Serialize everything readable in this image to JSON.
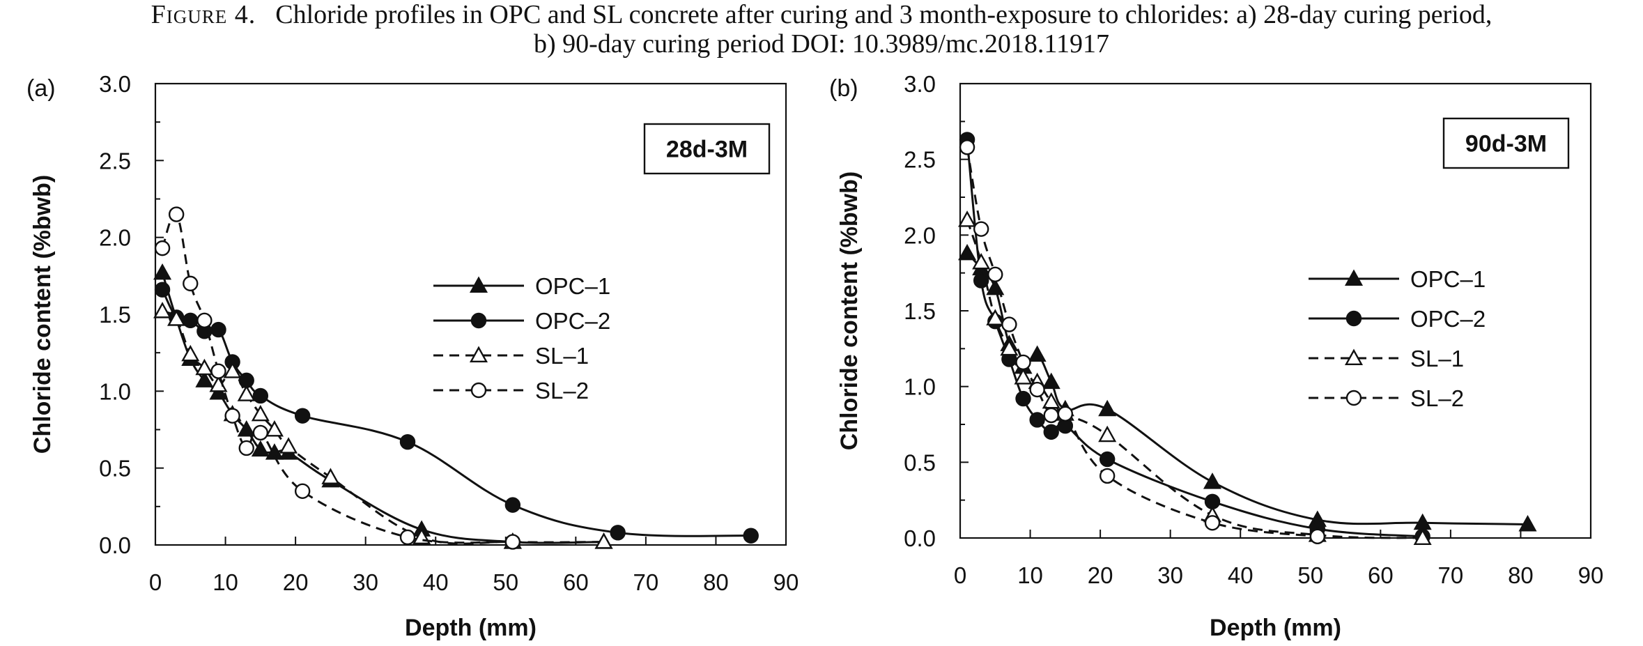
{
  "caption": {
    "figure_label": "Figure 4.",
    "line1": "Chloride profiles in OPC and SL concrete after curing and 3 month-exposure to chlorides: a) 28-day curing period,",
    "line2": "b) 90-day curing period DOI: 10.3989/mc.2018.11917"
  },
  "chart_data": [
    {
      "type": "line",
      "panel_label": "(a)",
      "inset_label": "28d-3M",
      "xlabel": "Depth (mm)",
      "ylabel": "Chloride content (%bwb)",
      "xlim": [
        0,
        90
      ],
      "ylim": [
        0,
        3.0
      ],
      "xticks": [
        "0",
        "10",
        "20",
        "30",
        "40",
        "50",
        "60",
        "70",
        "80",
        "90"
      ],
      "yticks": [
        "0.0",
        "0.5",
        "1.0",
        "1.5",
        "2.0",
        "2.5",
        "3.0"
      ],
      "grid": false,
      "legend_position": "center-right",
      "series": [
        {
          "name": "OPC–1",
          "marker": "triangle-filled",
          "line": "solid",
          "x": [
            1,
            3,
            5,
            7,
            9,
            11,
            13,
            15,
            17,
            19,
            25,
            38,
            51,
            64
          ],
          "y": [
            1.77,
            1.47,
            1.21,
            1.07,
            0.99,
            0.85,
            0.75,
            0.62,
            0.6,
            0.6,
            0.42,
            0.1,
            0.02,
            0.02
          ]
        },
        {
          "name": "OPC–2",
          "marker": "circle-filled",
          "line": "solid",
          "x": [
            1,
            3,
            5,
            7,
            9,
            11,
            13,
            15,
            21,
            36,
            51,
            66,
            85
          ],
          "y": [
            1.66,
            1.48,
            1.46,
            1.39,
            1.4,
            1.19,
            1.07,
            0.97,
            0.84,
            0.67,
            0.26,
            0.08,
            0.06
          ]
        },
        {
          "name": "SL–1",
          "marker": "triangle-open",
          "line": "dashed",
          "x": [
            1,
            3,
            5,
            7,
            9,
            11,
            13,
            15,
            17,
            19,
            25,
            38,
            51,
            64
          ],
          "y": [
            1.52,
            1.47,
            1.24,
            1.15,
            1.04,
            1.13,
            0.98,
            0.85,
            0.75,
            0.64,
            0.44,
            0.05,
            0.02,
            0.02
          ]
        },
        {
          "name": "SL–2",
          "marker": "circle-open",
          "line": "dashed",
          "x": [
            1,
            3,
            5,
            7,
            9,
            11,
            13,
            15,
            21,
            36,
            51
          ],
          "y": [
            1.93,
            2.15,
            1.7,
            1.46,
            1.13,
            0.84,
            0.63,
            0.73,
            0.35,
            0.05,
            0.02
          ]
        }
      ]
    },
    {
      "type": "line",
      "panel_label": "(b)",
      "inset_label": "90d-3M",
      "xlabel": "Depth (mm)",
      "ylabel": "Chloride content (%bwb)",
      "xlim": [
        0,
        90
      ],
      "ylim": [
        0,
        3.0
      ],
      "xticks": [
        "0",
        "10",
        "20",
        "30",
        "40",
        "50",
        "60",
        "70",
        "80",
        "90"
      ],
      "yticks": [
        "0.0",
        "0.5",
        "1.0",
        "1.5",
        "2.0",
        "2.5",
        "3.0"
      ],
      "grid": false,
      "legend_position": "center-right",
      "series": [
        {
          "name": "OPC–1",
          "marker": "triangle-filled",
          "line": "solid",
          "x": [
            1,
            3,
            5,
            7,
            9,
            11,
            13,
            15,
            21,
            36,
            51,
            66,
            81
          ],
          "y": [
            1.88,
            1.78,
            1.65,
            1.28,
            1.13,
            1.21,
            1.03,
            0.85,
            0.85,
            0.37,
            0.12,
            0.1,
            0.09
          ]
        },
        {
          "name": "OPC–2",
          "marker": "circle-filled",
          "line": "solid",
          "x": [
            1,
            3,
            5,
            7,
            9,
            11,
            13,
            15,
            21,
            36,
            51,
            66
          ],
          "y": [
            2.63,
            1.7,
            1.43,
            1.18,
            0.92,
            0.78,
            0.7,
            0.74,
            0.52,
            0.24,
            0.06,
            0.01
          ]
        },
        {
          "name": "SL–1",
          "marker": "triangle-open",
          "line": "dashed",
          "x": [
            1,
            3,
            5,
            7,
            9,
            11,
            13,
            15,
            21,
            36,
            51,
            66
          ],
          "y": [
            2.1,
            1.82,
            1.45,
            1.25,
            1.06,
            1.03,
            0.9,
            0.82,
            0.68,
            0.15,
            0.02,
            0.0
          ]
        },
        {
          "name": "SL–2",
          "marker": "circle-open",
          "line": "dashed",
          "x": [
            1,
            3,
            5,
            7,
            9,
            11,
            13,
            15,
            21,
            36,
            51
          ],
          "y": [
            2.58,
            2.04,
            1.74,
            1.41,
            1.16,
            0.98,
            0.81,
            0.82,
            0.41,
            0.1,
            0.01
          ]
        }
      ]
    }
  ]
}
